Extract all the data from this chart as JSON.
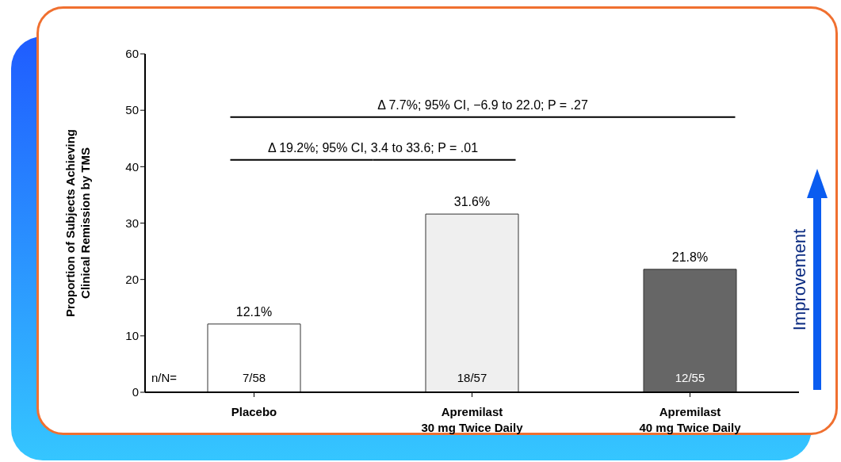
{
  "chart_data": {
    "type": "bar",
    "ylabel": "Proportion of Subjects Achieving\nClinical Remission by TMS",
    "categories": [
      "Placebo",
      "Apremilast\n30 mg Twice Daily",
      "Apremilast\n40 mg Twice Daily"
    ],
    "values": [
      12.1,
      31.6,
      21.8
    ],
    "colors": [
      "#ffffff",
      "#efefef",
      "#666666"
    ],
    "value_labels": [
      "12.1%",
      "31.6%",
      "21.8%"
    ],
    "ylim": [
      0,
      60
    ],
    "yticks": [
      0,
      10,
      20,
      30,
      40,
      50,
      60
    ],
    "grid": false,
    "legend": false,
    "annotations": [
      "Δ 7.7%; 95% CI, −6.9 to 22.0; P = .27",
      "Δ 19.2%; 95% CI, 3.4 to 33.6; P = .01",
      "n/N=",
      "7/58",
      "18/57",
      "12/55",
      "Improvement"
    ]
  }
}
